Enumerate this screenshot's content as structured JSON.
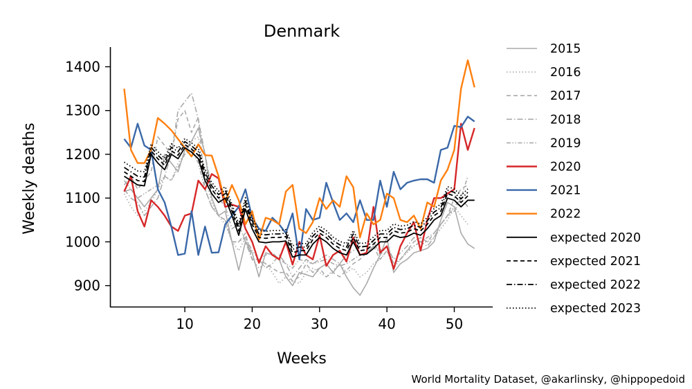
{
  "chart_data": {
    "type": "line",
    "title": "Denmark",
    "xlabel": "Weeks",
    "ylabel": "Weekly deaths",
    "xlim": [
      -1,
      55.6
    ],
    "ylim": [
      852,
      1445
    ],
    "xticks": [
      10,
      20,
      30,
      40,
      50
    ],
    "yticks": [
      900,
      1000,
      1100,
      1200,
      1300,
      1400
    ],
    "grid": false,
    "legend_position": "right",
    "series": [
      {
        "name": "2015",
        "color": "#aaaaaa",
        "style": "solid",
        "values": [
          1115,
          1120,
          1100,
          1080,
          1100,
          1120,
          1200,
          1180,
          1160,
          1210,
          1230,
          1260,
          1200,
          1100,
          1060,
          1070,
          1000,
          935,
          1000,
          975,
          920,
          975,
          970,
          960,
          920,
          900,
          930,
          925,
          920,
          940,
          950,
          930,
          950,
          920,
          895,
          878,
          905,
          940,
          970,
          1010,
          930,
          950,
          960,
          975,
          980,
          985,
          1000,
          1050,
          1090,
          1080,
          1020,
          995,
          985
        ]
      },
      {
        "name": "2016",
        "color": "#aaaaaa",
        "style": "dotted",
        "values": [
          1110,
          1080,
          1060,
          1070,
          1090,
          1120,
          1150,
          1140,
          1180,
          1200,
          1230,
          1240,
          1150,
          1090,
          1060,
          1040,
          1000,
          980,
          1010,
          960,
          940,
          950,
          930,
          905,
          920,
          910,
          905,
          930,
          940,
          930,
          920,
          935,
          950,
          930,
          940,
          920,
          930,
          950,
          960,
          980,
          940,
          960,
          975,
          990,
          1000,
          1000,
          1010,
          1030,
          1050,
          1080,
          1060,
          1040,
          null
        ]
      },
      {
        "name": "2017",
        "color": "#aaaaaa",
        "style": "dashed",
        "values": [
          1130,
          1150,
          1120,
          1140,
          1160,
          1240,
          1220,
          1200,
          1280,
          1300,
          1250,
          1285,
          1120,
          1080,
          1060,
          1050,
          1000,
          1000,
          1020,
          960,
          960,
          950,
          940,
          930,
          930,
          910,
          920,
          950,
          930,
          940,
          920,
          930,
          920,
          935,
          950,
          960,
          975,
          990,
          960,
          980,
          950,
          960,
          980,
          1000,
          1010,
          1000,
          1020,
          1040,
          1060,
          1100,
          1120,
          1130,
          null
        ]
      },
      {
        "name": "2018",
        "color": "#aaaaaa",
        "style": "dashdot",
        "values": [
          1120,
          1100,
          1090,
          1060,
          1080,
          1100,
          1150,
          1200,
          1300,
          1320,
          1340,
          1280,
          1200,
          1120,
          1100,
          1080,
          1030,
          1040,
          1000,
          960,
          960,
          940,
          950,
          970,
          950,
          920,
          940,
          960,
          950,
          960,
          970,
          960,
          950,
          970,
          980,
          990,
          990,
          1000,
          970,
          990,
          960,
          975,
          990,
          1010,
          1000,
          990,
          1010,
          1040,
          1060,
          1070,
          1100,
          1080,
          null
        ]
      },
      {
        "name": "2019",
        "color": "#aaaaaa",
        "style": "dashdotdot",
        "values": [
          1140,
          1120,
          1100,
          1110,
          1120,
          1130,
          1150,
          1140,
          1170,
          1200,
          1210,
          1180,
          1120,
          1080,
          1060,
          1050,
          1000,
          1000,
          1010,
          980,
          960,
          970,
          975,
          960,
          950,
          940,
          960,
          955,
          950,
          955,
          960,
          950,
          945,
          950,
          960,
          970,
          975,
          990,
          980,
          990,
          950,
          960,
          980,
          990,
          1000,
          1010,
          1020,
          1040,
          1060,
          1080,
          1100,
          1150,
          null
        ]
      },
      {
        "name": "2020",
        "color": "#d62728",
        "style": "solid",
        "values": [
          1115,
          1150,
          1070,
          1035,
          1095,
          1080,
          1060,
          1035,
          1025,
          1060,
          1065,
          1140,
          1120,
          1155,
          1145,
          1080,
          1085,
          1080,
          1030,
          1000,
          952,
          990,
          970,
          960,
          1000,
          948,
          1000,
          970,
          960,
          1015,
          945,
          970,
          980,
          955,
          1010,
          970,
          975,
          1080,
          975,
          990,
          938,
          990,
          1020,
          1045,
          980,
          1050,
          1100,
          1100,
          1110,
          1120,
          1270,
          1210,
          1260
        ]
      },
      {
        "name": "2021",
        "color": "#3a68a8",
        "style": "solid",
        "values": [
          1235,
          1215,
          1270,
          1220,
          1210,
          1120,
          1090,
          1035,
          970,
          973,
          1070,
          970,
          1035,
          975,
          976,
          1040,
          1060,
          1080,
          1120,
          1055,
          1030,
          1025,
          1055,
          1040,
          1020,
          1065,
          960,
          1075,
          1050,
          1055,
          1135,
          1090,
          1050,
          1065,
          1045,
          1095,
          1050,
          1050,
          1140,
          1080,
          1160,
          1120,
          1135,
          1140,
          1143,
          1143,
          1135,
          1210,
          1215,
          1265,
          1262,
          1286,
          1275
        ]
      },
      {
        "name": "2022",
        "color": "#ff7f0e",
        "style": "solid",
        "values": [
          1350,
          1210,
          1180,
          1180,
          1210,
          1283,
          1270,
          1255,
          1235,
          1215,
          1195,
          1223,
          1198,
          1197,
          1150,
          1090,
          1130,
          1095,
          1040,
          1070,
          1005,
          1055,
          1050,
          1040,
          1115,
          1130,
          1030,
          1020,
          1045,
          1100,
          1075,
          1095,
          1080,
          1150,
          1125,
          1010,
          1065,
          1040,
          1050,
          1110,
          1100,
          1050,
          1045,
          1060,
          1030,
          1090,
          1080,
          1140,
          1165,
          1210,
          1350,
          1415,
          1353
        ]
      },
      {
        "name": "expected 2020",
        "color": "#000000",
        "style": "solid",
        "values": [
          1150,
          1140,
          1130,
          1128,
          1200,
          1180,
          1165,
          1200,
          1190,
          1215,
          1205,
          1190,
          1140,
          1110,
          1090,
          1100,
          1060,
          1015,
          1075,
          1030,
          1000,
          998,
          1000,
          1000,
          1002,
          965,
          970,
          970,
          995,
          1010,
          1000,
          985,
          975,
          970,
          1000,
          970,
          972,
          985,
          1000,
          1000,
          1015,
          1010,
          1012,
          1020,
          1015,
          1030,
          1050,
          1060,
          1100,
          1095,
          1080,
          1095,
          1095
        ]
      },
      {
        "name": "expected 2021",
        "color": "#000000",
        "style": "dashed",
        "values": [
          1160,
          1150,
          1140,
          1138,
          1208,
          1190,
          1175,
          1208,
          1198,
          1222,
          1212,
          1198,
          1150,
          1120,
          1100,
          1110,
          1070,
          1025,
          1085,
          1040,
          1010,
          1008,
          1010,
          1010,
          1012,
          975,
          980,
          980,
          1005,
          1020,
          1010,
          995,
          985,
          980,
          1010,
          980,
          982,
          995,
          1010,
          1010,
          1025,
          1020,
          1022,
          1030,
          1025,
          1040,
          1060,
          1070,
          1110,
          1105,
          1090,
          1105,
          null
        ]
      },
      {
        "name": "expected 2022",
        "color": "#000000",
        "style": "dashdot",
        "values": [
          1170,
          1160,
          1150,
          1148,
          1216,
          1198,
          1183,
          1216,
          1206,
          1229,
          1219,
          1206,
          1158,
          1128,
          1108,
          1118,
          1078,
          1033,
          1093,
          1048,
          1018,
          1016,
          1018,
          1018,
          1020,
          983,
          988,
          988,
          1013,
          1028,
          1018,
          1003,
          993,
          988,
          1018,
          988,
          990,
          1003,
          1018,
          1018,
          1033,
          1028,
          1030,
          1038,
          1033,
          1048,
          1068,
          1078,
          1118,
          1113,
          1098,
          1113,
          null
        ]
      },
      {
        "name": "expected 2023",
        "color": "#000000",
        "style": "dotted",
        "values": [
          1182,
          1172,
          1162,
          1160,
          1224,
          1206,
          1191,
          1224,
          1214,
          1236,
          1226,
          1214,
          1166,
          1136,
          1116,
          1126,
          1086,
          1041,
          1101,
          1056,
          1026,
          1024,
          1026,
          1026,
          1028,
          991,
          996,
          996,
          1021,
          1036,
          1026,
          1011,
          1001,
          996,
          1026,
          996,
          998,
          1011,
          1026,
          1026,
          1041,
          1036,
          1038,
          1046,
          1041,
          1056,
          1076,
          1086,
          1126,
          1121,
          1106,
          1121,
          null
        ]
      }
    ]
  },
  "source": "World Mortality Dataset, @akarlinsky, @hippopedoid"
}
